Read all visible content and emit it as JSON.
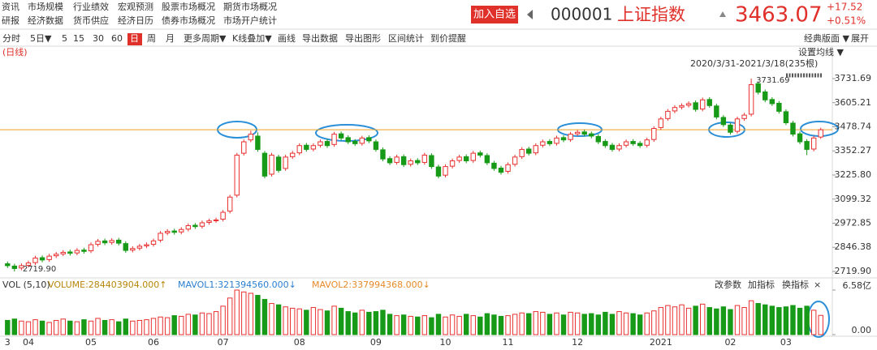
{
  "nav": {
    "row1": [
      "资讯",
      "市场规模",
      "行业绩效",
      "宏观预测",
      "股票市场概况",
      "期货市场概况"
    ],
    "row2": [
      "研报",
      "经济数据",
      "货币供应",
      "经济日历",
      "债券市场概况",
      "市场开户统计"
    ]
  },
  "quote": {
    "button": "加入自选",
    "code": "000001",
    "name": "上证指数",
    "price": 3463.07,
    "change": "+17.52",
    "change_pct": "+0.51%"
  },
  "toolbar": {
    "items": [
      "分时",
      "5日▼",
      "5",
      "15",
      "30",
      "60",
      "日",
      "周",
      "月",
      "更多周期▼",
      "K线叠加▼",
      "画线",
      "导出数据",
      "导出图形",
      "区间统计",
      "到价提醒"
    ],
    "selected": 6,
    "right": [
      "经典版面 ▼",
      "展开"
    ]
  },
  "chart_data": {
    "type": "candlestick",
    "period_label": "(日线)",
    "ma_setting": "设置均线 ▼",
    "range": "2020/3/31-2021/3/18(235根)",
    "high_label": "3731.69",
    "low_label": "2719.90",
    "up_color": "#e8302f",
    "down_color": "#179a17",
    "price_line_color": "#f0a020",
    "categories": [
      "3",
      null,
      null,
      "04",
      null,
      null,
      null,
      null,
      null,
      null,
      null,
      null,
      "05",
      null,
      null,
      null,
      null,
      null,
      null,
      null,
      null,
      "06",
      null,
      null,
      null,
      null,
      null,
      null,
      null,
      null,
      null,
      "07",
      null,
      null,
      null,
      null,
      null,
      null,
      null,
      null,
      null,
      null,
      "08",
      null,
      null,
      null,
      null,
      null,
      null,
      null,
      null,
      null,
      null,
      "09",
      null,
      null,
      null,
      null,
      null,
      null,
      null,
      null,
      null,
      "10",
      null,
      null,
      null,
      null,
      null,
      null,
      null,
      null,
      "11",
      null,
      null,
      null,
      null,
      null,
      null,
      null,
      null,
      null,
      "12",
      null,
      null,
      null,
      null,
      null,
      null,
      null,
      null,
      null,
      null,
      null,
      "2021",
      null,
      null,
      null,
      null,
      null,
      null,
      null,
      null,
      null,
      "02",
      null,
      null,
      null,
      null,
      null,
      null,
      null,
      "03",
      null,
      null,
      null,
      null,
      null
    ],
    "open": [
      2760,
      2748,
      2738,
      2752,
      2766,
      2792,
      2782,
      2802,
      2812,
      2822,
      2817,
      2832,
      2828,
      2862,
      2880,
      2872,
      2884,
      2866,
      2832,
      2842,
      2854,
      2862,
      2884,
      2922,
      2932,
      2927,
      2942,
      2962,
      2957,
      2977,
      2987,
      2994,
      3036,
      3120,
      3340,
      3410,
      3430,
      3340,
      3230,
      3320,
      3260,
      3322,
      3342,
      3382,
      3362,
      3382,
      3402,
      3386,
      3442,
      3422,
      3402,
      3392,
      3422,
      3400,
      3358,
      3312,
      3292,
      3322,
      3282,
      3302,
      3292,
      3328,
      3268,
      3225,
      3272,
      3302,
      3322,
      3302,
      3342,
      3328,
      3288,
      3262,
      3245,
      3282,
      3322,
      3362,
      3342,
      3382,
      3402,
      3392,
      3422,
      3412,
      3442,
      3452,
      3442,
      3428,
      3402,
      3382,
      3362,
      3382,
      3402,
      3392,
      3382,
      3412,
      3475,
      3522,
      3562,
      3582,
      3592,
      3605,
      3572,
      3622,
      3588,
      3528,
      3488,
      3455,
      3522,
      3545,
      3705,
      3662,
      3622,
      3602,
      3558,
      3498,
      3442,
      3402,
      3362,
      3425
    ],
    "high": [
      2772,
      2760,
      2762,
      2776,
      2802,
      2804,
      2812,
      2822,
      2832,
      2834,
      2842,
      2844,
      2872,
      2890,
      2892,
      2894,
      2896,
      2878,
      2852,
      2864,
      2872,
      2892,
      2932,
      2942,
      2944,
      2952,
      2972,
      2974,
      2987,
      2997,
      3002,
      3042,
      3122,
      3342,
      3412,
      3458,
      3450,
      3352,
      3342,
      3332,
      3332,
      3352,
      3392,
      3394,
      3392,
      3412,
      3414,
      3452,
      3454,
      3434,
      3414,
      3432,
      3434,
      3412,
      3370,
      3324,
      3332,
      3334,
      3312,
      3314,
      3342,
      3340,
      3280,
      3282,
      3312,
      3332,
      3334,
      3352,
      3354,
      3340,
      3300,
      3274,
      3292,
      3332,
      3372,
      3374,
      3392,
      3412,
      3414,
      3432,
      3434,
      3452,
      3462,
      3464,
      3454,
      3440,
      3414,
      3394,
      3392,
      3412,
      3414,
      3404,
      3422,
      3482,
      3532,
      3572,
      3592,
      3602,
      3612,
      3617,
      3632,
      3634,
      3600,
      3540,
      3500,
      3532,
      3552,
      3731.69,
      3717,
      3674,
      3634,
      3614,
      3570,
      3510,
      3454,
      3414,
      3432,
      3474
    ],
    "low": [
      2738,
      2719.9,
      2726,
      2740,
      2754,
      2768,
      2770,
      2790,
      2800,
      2803,
      2805,
      2813,
      2816,
      2850,
      2858,
      2860,
      2856,
      2818,
      2820,
      2830,
      2842,
      2850,
      2872,
      2910,
      2913,
      2915,
      2930,
      2943,
      2945,
      2965,
      2975,
      2982,
      3024,
      3108,
      3328,
      3398,
      3348,
      3208,
      3218,
      3238,
      3248,
      3310,
      3330,
      3348,
      3350,
      3370,
      3368,
      3374,
      3408,
      3388,
      3378,
      3380,
      3393,
      3348,
      3298,
      3278,
      3280,
      3268,
      3270,
      3278,
      3280,
      3258,
      3208,
      3213,
      3260,
      3290,
      3288,
      3290,
      3318,
      3278,
      3248,
      3228,
      3233,
      3270,
      3310,
      3328,
      3330,
      3370,
      3378,
      3380,
      3398,
      3400,
      3430,
      3428,
      3418,
      3388,
      3368,
      3348,
      3350,
      3370,
      3378,
      3368,
      3370,
      3400,
      3463,
      3510,
      3550,
      3570,
      3580,
      3558,
      3560,
      3578,
      3518,
      3478,
      3438,
      3443,
      3510,
      3533,
      3648,
      3608,
      3588,
      3548,
      3488,
      3428,
      3388,
      3330,
      3350,
      3415
    ],
    "close": [
      2750,
      2735,
      2750,
      2764,
      2790,
      2780,
      2800,
      2810,
      2820,
      2815,
      2830,
      2825,
      2860,
      2878,
      2870,
      2882,
      2868,
      2830,
      2840,
      2852,
      2860,
      2880,
      2920,
      2930,
      2925,
      2940,
      2960,
      2955,
      2975,
      2985,
      2990,
      3030,
      3110,
      3330,
      3400,
      3440,
      3360,
      3220,
      3330,
      3250,
      3320,
      3340,
      3380,
      3360,
      3380,
      3400,
      3380,
      3440,
      3420,
      3400,
      3390,
      3420,
      3405,
      3360,
      3310,
      3290,
      3320,
      3280,
      3300,
      3290,
      3330,
      3270,
      3220,
      3270,
      3300,
      3320,
      3300,
      3340,
      3330,
      3290,
      3260,
      3240,
      3280,
      3320,
      3360,
      3340,
      3380,
      3400,
      3390,
      3420,
      3410,
      3440,
      3450,
      3440,
      3430,
      3400,
      3380,
      3360,
      3380,
      3400,
      3390,
      3380,
      3410,
      3470,
      3520,
      3560,
      3580,
      3590,
      3600,
      3570,
      3620,
      3590,
      3530,
      3490,
      3450,
      3520,
      3540,
      3700,
      3660,
      3620,
      3600,
      3560,
      3500,
      3440,
      3400,
      3360,
      3420,
      3463.07
    ],
    "volume": [
      2.1,
      2.3,
      2.0,
      1.9,
      2.2,
      2.0,
      1.8,
      2.1,
      2.3,
      2.0,
      1.9,
      2.2,
      2.0,
      2.4,
      2.1,
      2.2,
      1.9,
      2.3,
      2.0,
      2.1,
      2.2,
      2.4,
      2.6,
      2.5,
      2.8,
      2.7,
      3.0,
      2.9,
      3.2,
      3.1,
      3.4,
      4.2,
      5.4,
      6.58,
      6.3,
      6.1,
      5.8,
      5.2,
      4.6,
      4.4,
      4.1,
      3.9,
      3.8,
      3.6,
      4.0,
      3.7,
      3.5,
      4.2,
      3.9,
      3.4,
      3.2,
      3.6,
      3.3,
      3.4,
      3.6,
      3.0,
      2.8,
      2.9,
      2.7,
      2.6,
      2.8,
      2.5,
      3.0,
      2.6,
      2.9,
      2.7,
      3.0,
      2.8,
      2.6,
      3.1,
      2.9,
      2.7,
      2.8,
      3.0,
      3.2,
      3.1,
      3.4,
      3.3,
      3.0,
      3.2,
      2.9,
      3.3,
      3.2,
      3.0,
      3.1,
      2.9,
      3.3,
      3.0,
      3.4,
      3.2,
      3.1,
      2.9,
      3.2,
      3.5,
      4.0,
      4.3,
      4.1,
      4.4,
      3.9,
      4.2,
      4.5,
      4.0,
      3.8,
      4.1,
      3.7,
      4.3,
      4.0,
      5.0,
      4.6,
      4.4,
      4.2,
      4.0,
      4.1,
      4.3,
      3.9,
      4.2,
      3.6,
      2.84
    ],
    "ylim": [
      2719.9,
      3731.69
    ],
    "yticks": [
      {
        "value": 3731.69,
        "label": "3731.69"
      },
      {
        "value": 3605.21,
        "label": "3605.21"
      },
      {
        "value": 3478.74,
        "label": "3478.74"
      },
      {
        "value": 3352.27,
        "label": "3352.27"
      },
      {
        "value": 3225.8,
        "label": "3225.80"
      },
      {
        "value": 3099.32,
        "label": "3099.32"
      },
      {
        "value": 2972.85,
        "label": "2972.85"
      },
      {
        "value": 2846.38,
        "label": "2846.38"
      },
      {
        "value": 2719.9,
        "label": "2719.90"
      }
    ],
    "vol_ylim": [
      0,
      6.58
    ],
    "vol_yticks": [
      {
        "value": 6.58,
        "label": "6.58亿"
      },
      {
        "value": 0,
        "label": "0.00"
      }
    ],
    "vol_header": [
      "VOL (5,10)",
      "VOLUME:284403904.000↑",
      "MAVOL1:321394560.000↓",
      "MAVOL2:337994368.000↓"
    ],
    "vol_header_colors": [
      "#333333",
      "#b8860b",
      "#2a7fd0",
      "#e88a2a"
    ],
    "vol_tools": [
      "改参数",
      "加指标",
      "换指标",
      "×"
    ]
  }
}
